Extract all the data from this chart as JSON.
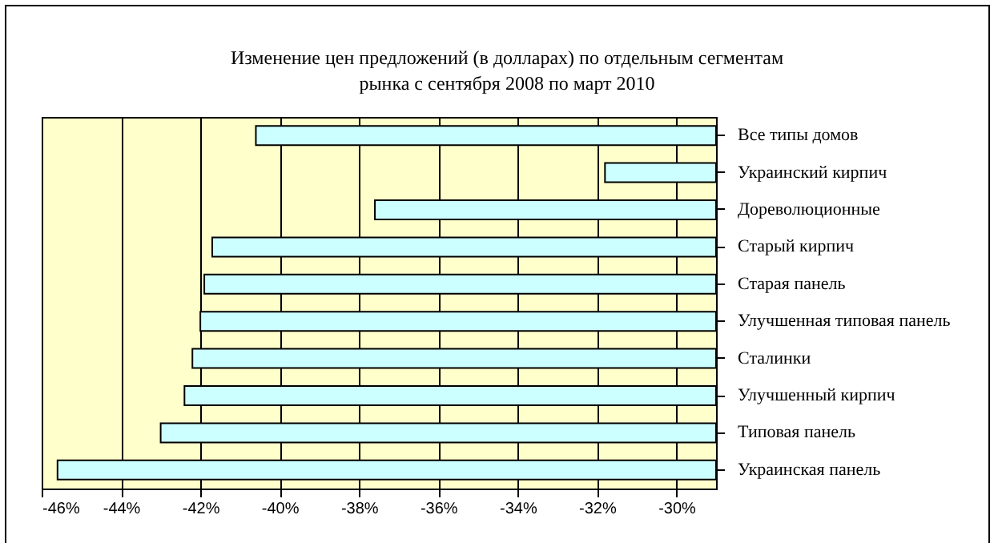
{
  "chart_data": {
    "type": "bar",
    "orientation": "horizontal",
    "title": "Изменение цен предложений (в долларах) по отдельным сегментам рынка  с сентября 2008  по март 2010",
    "categories": [
      "Все типы домов",
      "Украинский кирпич",
      "Дореволюционные",
      "Старый кирпич",
      "Старая панель",
      "Улучшенная типовая панель",
      "Сталинки",
      "Улучшенный кирпич",
      "Типовая панель",
      "Украинская панель"
    ],
    "values": [
      -40.6,
      -31.8,
      -37.6,
      -41.7,
      -41.9,
      -42.0,
      -42.2,
      -42.4,
      -43.0,
      -45.6
    ],
    "color": "#ccffff",
    "xlim": [
      -46,
      -29
    ],
    "xticks": [
      {
        "value": -46,
        "label": "-46%"
      },
      {
        "value": -44,
        "label": "-44%"
      },
      {
        "value": -42,
        "label": "-42%"
      },
      {
        "value": -40,
        "label": "-40%"
      },
      {
        "value": -38,
        "label": "-38%"
      },
      {
        "value": -36,
        "label": "-36%"
      },
      {
        "value": -34,
        "label": "-34%"
      },
      {
        "value": -32,
        "label": "-32%"
      },
      {
        "value": -30,
        "label": "-30%"
      }
    ],
    "grid": "x"
  }
}
